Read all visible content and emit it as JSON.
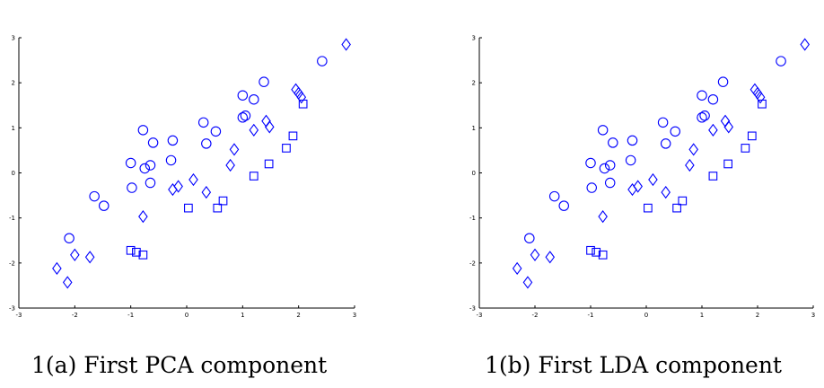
{
  "chart_data": [
    {
      "type": "scatter",
      "title": "",
      "caption": "1(a) First PCA component",
      "xlabel": "",
      "ylabel": "",
      "xlim": [
        -3,
        3
      ],
      "ylim": [
        -3,
        3
      ],
      "xticks": [
        "-3",
        "-2",
        "-1",
        "0",
        "1",
        "2",
        "3"
      ],
      "yticks": [
        "-3",
        "-2",
        "-1",
        "0",
        "1",
        "2",
        "3"
      ],
      "grid": false,
      "color": "#0000ff",
      "series": [
        {
          "marker": "circle",
          "points": [
            [
              -2.1,
              -1.45
            ],
            [
              -1.65,
              -0.52
            ],
            [
              -1.48,
              -0.73
            ],
            [
              -1.0,
              0.22
            ],
            [
              -0.98,
              -0.33
            ],
            [
              -0.78,
              0.95
            ],
            [
              -0.75,
              0.1
            ],
            [
              -0.65,
              0.17
            ],
            [
              -0.6,
              0.67
            ],
            [
              -0.65,
              -0.22
            ],
            [
              -0.25,
              0.72
            ],
            [
              -0.28,
              0.28
            ],
            [
              0.3,
              1.12
            ],
            [
              0.35,
              0.65
            ],
            [
              0.52,
              0.92
            ],
            [
              1.0,
              1.72
            ],
            [
              1.0,
              1.23
            ],
            [
              1.05,
              1.27
            ],
            [
              1.2,
              1.63
            ],
            [
              1.38,
              2.02
            ],
            [
              2.42,
              2.48
            ]
          ]
        },
        {
          "marker": "square",
          "points": [
            [
              -1.0,
              -1.72
            ],
            [
              -0.9,
              -1.76
            ],
            [
              -0.78,
              -1.82
            ],
            [
              0.03,
              -0.78
            ],
            [
              0.55,
              -0.78
            ],
            [
              0.65,
              -0.62
            ],
            [
              1.2,
              -0.07
            ],
            [
              1.47,
              0.2
            ],
            [
              1.78,
              0.55
            ],
            [
              1.9,
              0.82
            ],
            [
              2.08,
              1.53
            ]
          ]
        },
        {
          "marker": "diamond",
          "points": [
            [
              -2.32,
              -2.12
            ],
            [
              -2.13,
              -2.43
            ],
            [
              -2.0,
              -1.82
            ],
            [
              -1.73,
              -1.87
            ],
            [
              -0.78,
              -0.97
            ],
            [
              -0.25,
              -0.37
            ],
            [
              -0.15,
              -0.3
            ],
            [
              0.12,
              -0.15
            ],
            [
              0.35,
              -0.43
            ],
            [
              0.78,
              0.17
            ],
            [
              0.85,
              0.52
            ],
            [
              1.2,
              0.95
            ],
            [
              1.42,
              1.15
            ],
            [
              1.48,
              1.02
            ],
            [
              1.95,
              1.85
            ],
            [
              2.0,
              1.77
            ],
            [
              2.05,
              1.68
            ],
            [
              2.85,
              2.85
            ]
          ]
        }
      ]
    },
    {
      "type": "scatter",
      "title": "",
      "caption": "1(b) First LDA component",
      "xlabel": "",
      "ylabel": "",
      "xlim": [
        -3,
        3
      ],
      "ylim": [
        -3,
        3
      ],
      "xticks": [
        "-3",
        "-2",
        "-1",
        "0",
        "1",
        "2",
        "3"
      ],
      "yticks": [
        "-3",
        "-2",
        "-1",
        "0",
        "1",
        "2",
        "3"
      ],
      "grid": false,
      "color": "#0000ff",
      "series": [
        {
          "marker": "circle",
          "points": [
            [
              -2.1,
              -1.45
            ],
            [
              -1.65,
              -0.52
            ],
            [
              -1.48,
              -0.73
            ],
            [
              -1.0,
              0.22
            ],
            [
              -0.98,
              -0.33
            ],
            [
              -0.78,
              0.95
            ],
            [
              -0.75,
              0.1
            ],
            [
              -0.65,
              0.17
            ],
            [
              -0.6,
              0.67
            ],
            [
              -0.65,
              -0.22
            ],
            [
              -0.25,
              0.72
            ],
            [
              -0.28,
              0.28
            ],
            [
              0.3,
              1.12
            ],
            [
              0.35,
              0.65
            ],
            [
              0.52,
              0.92
            ],
            [
              1.0,
              1.72
            ],
            [
              1.0,
              1.23
            ],
            [
              1.05,
              1.27
            ],
            [
              1.2,
              1.63
            ],
            [
              1.38,
              2.02
            ],
            [
              2.42,
              2.48
            ]
          ]
        },
        {
          "marker": "square",
          "points": [
            [
              -1.0,
              -1.72
            ],
            [
              -0.9,
              -1.76
            ],
            [
              -0.78,
              -1.82
            ],
            [
              0.03,
              -0.78
            ],
            [
              0.55,
              -0.78
            ],
            [
              0.65,
              -0.62
            ],
            [
              1.2,
              -0.07
            ],
            [
              1.47,
              0.2
            ],
            [
              1.78,
              0.55
            ],
            [
              1.9,
              0.82
            ],
            [
              2.08,
              1.53
            ]
          ]
        },
        {
          "marker": "diamond",
          "points": [
            [
              -2.32,
              -2.12
            ],
            [
              -2.13,
              -2.43
            ],
            [
              -2.0,
              -1.82
            ],
            [
              -1.73,
              -1.87
            ],
            [
              -0.78,
              -0.97
            ],
            [
              -0.25,
              -0.37
            ],
            [
              -0.15,
              -0.3
            ],
            [
              0.12,
              -0.15
            ],
            [
              0.35,
              -0.43
            ],
            [
              0.78,
              0.17
            ],
            [
              0.85,
              0.52
            ],
            [
              1.2,
              0.95
            ],
            [
              1.42,
              1.15
            ],
            [
              1.48,
              1.02
            ],
            [
              1.95,
              1.85
            ],
            [
              2.0,
              1.77
            ],
            [
              2.05,
              1.68
            ],
            [
              2.85,
              2.85
            ]
          ]
        }
      ]
    }
  ]
}
